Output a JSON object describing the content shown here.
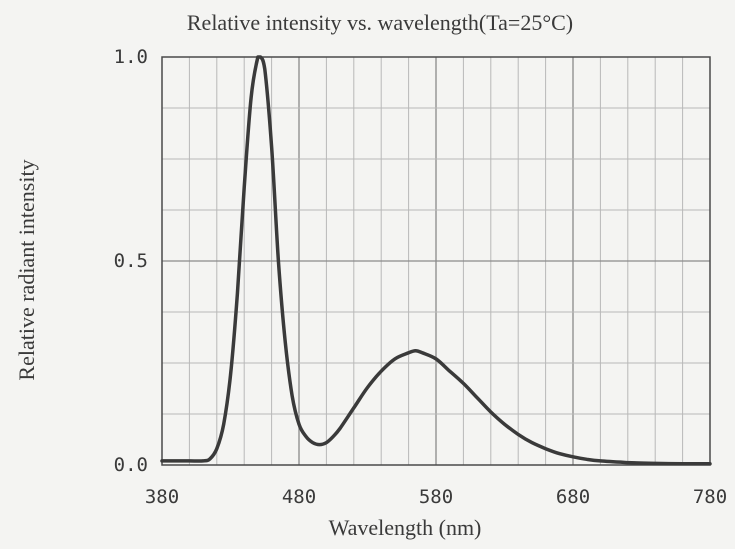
{
  "chart_data": {
    "type": "line",
    "title": "Relative intensity vs. wavelength(Ta=25°C)",
    "xlabel": "Wavelength (nm)",
    "ylabel": "Relative radiant intensity",
    "xlim": [
      380,
      780
    ],
    "ylim": [
      0.0,
      1.0
    ],
    "x_ticks": [
      "380",
      "480",
      "580",
      "680",
      "780"
    ],
    "y_ticks": [
      "0.0",
      "0.5",
      "1.0"
    ],
    "grid": true,
    "legend": "none",
    "line_color": "#3a3a3a",
    "series": [
      {
        "x": [
          380,
          390,
          400,
          410,
          415,
          420,
          425,
          430,
          435,
          440,
          445,
          450,
          452,
          455,
          460,
          465,
          470,
          475,
          480,
          485,
          490,
          495,
          500,
          505,
          510,
          520,
          530,
          540,
          550,
          560,
          565,
          570,
          580,
          590,
          600,
          610,
          620,
          630,
          640,
          650,
          660,
          670,
          680,
          690,
          700,
          720,
          740,
          760,
          780
        ],
        "y": [
          0.01,
          0.01,
          0.01,
          0.01,
          0.015,
          0.04,
          0.1,
          0.22,
          0.42,
          0.68,
          0.9,
          1.0,
          1.0,
          0.97,
          0.78,
          0.5,
          0.3,
          0.17,
          0.1,
          0.07,
          0.055,
          0.05,
          0.055,
          0.07,
          0.09,
          0.14,
          0.19,
          0.23,
          0.26,
          0.275,
          0.28,
          0.275,
          0.26,
          0.23,
          0.2,
          0.165,
          0.13,
          0.1,
          0.075,
          0.055,
          0.04,
          0.028,
          0.02,
          0.014,
          0.01,
          0.006,
          0.004,
          0.003,
          0.003
        ]
      }
    ]
  }
}
